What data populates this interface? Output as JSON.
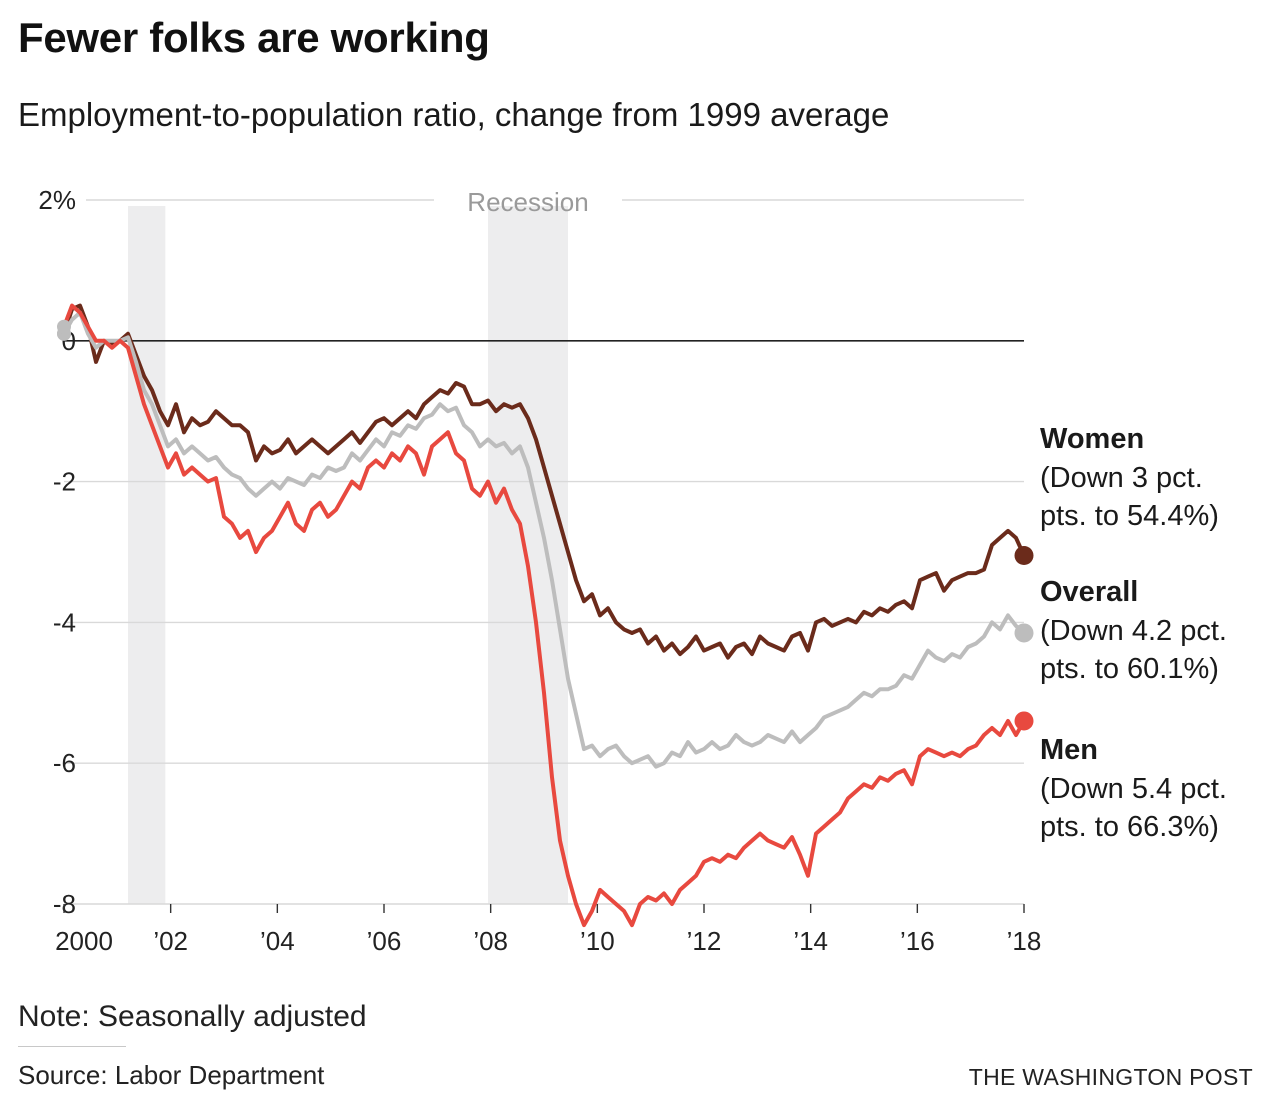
{
  "header": {
    "title": "Fewer folks are working",
    "subtitle": "Employment-to-population ratio, change from 1999 average"
  },
  "footer": {
    "note": "Note: Seasonally adjusted",
    "source": "Source: Labor Department",
    "credit": "THE WASHINGTON POST"
  },
  "labels": {
    "women": {
      "name": "Women",
      "line1": "(Down 3 pct.",
      "line2": "pts. to 54.4%)"
    },
    "overall": {
      "name": "Overall",
      "line1": "(Down 4.2 pct.",
      "line2": "pts. to 60.1%)"
    },
    "men": {
      "name": "Men",
      "line1": "(Down 5.4 pct.",
      "line2": "pts. to 66.3%)"
    }
  },
  "chart_data": {
    "type": "line",
    "title": "Fewer folks are working",
    "subtitle": "Employment-to-population ratio, change from 1999 average",
    "xlim": [
      2000,
      2018
    ],
    "ylim": [
      -8,
      2
    ],
    "grid": true,
    "y_ticks": [
      {
        "value": 2,
        "label": "2%"
      },
      {
        "value": 0,
        "label": "0"
      },
      {
        "value": -2,
        "label": "-2"
      },
      {
        "value": -4,
        "label": "-4"
      },
      {
        "value": -6,
        "label": "-6"
      },
      {
        "value": -8,
        "label": "-8"
      }
    ],
    "x_ticks": [
      {
        "value": 2000,
        "label": "2000"
      },
      {
        "value": 2002,
        "label": "’02"
      },
      {
        "value": 2004,
        "label": "’04"
      },
      {
        "value": 2006,
        "label": "’06"
      },
      {
        "value": 2008,
        "label": "’08"
      },
      {
        "value": 2010,
        "label": "’10"
      },
      {
        "value": 2012,
        "label": "’12"
      },
      {
        "value": 2014,
        "label": "’14"
      },
      {
        "value": 2016,
        "label": "’16"
      },
      {
        "value": 2018,
        "label": "’18"
      }
    ],
    "recessions": [
      {
        "start": 2001.2,
        "end": 2001.9,
        "label": ""
      },
      {
        "start": 2007.95,
        "end": 2009.45,
        "label": "Recession"
      }
    ],
    "series": [
      {
        "name": "Women",
        "color": "#6b2b1b",
        "x": [
          2000.0,
          2000.15,
          2000.3,
          2000.45,
          2000.6,
          2000.75,
          2000.9,
          2001.05,
          2001.2,
          2001.35,
          2001.5,
          2001.65,
          2001.8,
          2001.95,
          2002.1,
          2002.25,
          2002.4,
          2002.55,
          2002.7,
          2002.85,
          2003.0,
          2003.15,
          2003.3,
          2003.45,
          2003.6,
          2003.75,
          2003.9,
          2004.05,
          2004.2,
          2004.35,
          2004.5,
          2004.65,
          2004.8,
          2004.95,
          2005.1,
          2005.25,
          2005.4,
          2005.55,
          2005.7,
          2005.85,
          2006.0,
          2006.15,
          2006.3,
          2006.45,
          2006.6,
          2006.75,
          2006.9,
          2007.05,
          2007.2,
          2007.35,
          2007.5,
          2007.65,
          2007.8,
          2007.95,
          2008.1,
          2008.25,
          2008.4,
          2008.55,
          2008.7,
          2008.85,
          2009.0,
          2009.15,
          2009.3,
          2009.45,
          2009.6,
          2009.75,
          2009.9,
          2010.05,
          2010.2,
          2010.35,
          2010.5,
          2010.65,
          2010.8,
          2010.95,
          2011.1,
          2011.25,
          2011.4,
          2011.55,
          2011.7,
          2011.85,
          2012.0,
          2012.15,
          2012.3,
          2012.45,
          2012.6,
          2012.75,
          2012.9,
          2013.05,
          2013.2,
          2013.35,
          2013.5,
          2013.65,
          2013.8,
          2013.95,
          2014.1,
          2014.25,
          2014.4,
          2014.55,
          2014.7,
          2014.85,
          2015.0,
          2015.15,
          2015.3,
          2015.45,
          2015.6,
          2015.75,
          2015.9,
          2016.05,
          2016.2,
          2016.35,
          2016.5,
          2016.65,
          2016.8,
          2016.95,
          2017.1,
          2017.25,
          2017.4,
          2017.55,
          2017.7,
          2017.85,
          2018.0
        ],
        "values": [
          0.1,
          0.45,
          0.5,
          0.2,
          -0.3,
          0.0,
          -0.05,
          0.0,
          0.1,
          -0.2,
          -0.5,
          -0.7,
          -1.0,
          -1.2,
          -0.9,
          -1.3,
          -1.1,
          -1.2,
          -1.15,
          -1.0,
          -1.1,
          -1.2,
          -1.2,
          -1.3,
          -1.7,
          -1.5,
          -1.6,
          -1.55,
          -1.4,
          -1.6,
          -1.5,
          -1.4,
          -1.5,
          -1.6,
          -1.5,
          -1.4,
          -1.3,
          -1.45,
          -1.3,
          -1.15,
          -1.1,
          -1.2,
          -1.1,
          -1.0,
          -1.1,
          -0.9,
          -0.8,
          -0.7,
          -0.75,
          -0.6,
          -0.65,
          -0.9,
          -0.9,
          -0.85,
          -1.0,
          -0.9,
          -0.95,
          -0.9,
          -1.1,
          -1.4,
          -1.8,
          -2.2,
          -2.6,
          -3.0,
          -3.4,
          -3.7,
          -3.6,
          -3.9,
          -3.8,
          -4.0,
          -4.1,
          -4.15,
          -4.1,
          -4.3,
          -4.2,
          -4.4,
          -4.3,
          -4.45,
          -4.35,
          -4.2,
          -4.4,
          -4.35,
          -4.3,
          -4.5,
          -4.35,
          -4.3,
          -4.45,
          -4.2,
          -4.3,
          -4.35,
          -4.4,
          -4.2,
          -4.15,
          -4.4,
          -4.0,
          -3.95,
          -4.05,
          -4.0,
          -3.95,
          -4.0,
          -3.85,
          -3.9,
          -3.8,
          -3.85,
          -3.75,
          -3.7,
          -3.8,
          -3.4,
          -3.35,
          -3.3,
          -3.55,
          -3.4,
          -3.35,
          -3.3,
          -3.3,
          -3.25,
          -2.9,
          -2.8,
          -2.7,
          -2.8,
          -3.05
        ]
      },
      {
        "name": "Overall",
        "color": "#bdbdbd",
        "x": [
          2000.0,
          2000.15,
          2000.3,
          2000.45,
          2000.6,
          2000.75,
          2000.9,
          2001.05,
          2001.2,
          2001.35,
          2001.5,
          2001.65,
          2001.8,
          2001.95,
          2002.1,
          2002.25,
          2002.4,
          2002.55,
          2002.7,
          2002.85,
          2003.0,
          2003.15,
          2003.3,
          2003.45,
          2003.6,
          2003.75,
          2003.9,
          2004.05,
          2004.2,
          2004.35,
          2004.5,
          2004.65,
          2004.8,
          2004.95,
          2005.1,
          2005.25,
          2005.4,
          2005.55,
          2005.7,
          2005.85,
          2006.0,
          2006.15,
          2006.3,
          2006.45,
          2006.6,
          2006.75,
          2006.9,
          2007.05,
          2007.2,
          2007.35,
          2007.5,
          2007.65,
          2007.8,
          2007.95,
          2008.1,
          2008.25,
          2008.4,
          2008.55,
          2008.7,
          2008.85,
          2009.0,
          2009.15,
          2009.3,
          2009.45,
          2009.6,
          2009.75,
          2009.9,
          2010.05,
          2010.2,
          2010.35,
          2010.5,
          2010.65,
          2010.8,
          2010.95,
          2011.1,
          2011.25,
          2011.4,
          2011.55,
          2011.7,
          2011.85,
          2012.0,
          2012.15,
          2012.3,
          2012.45,
          2012.6,
          2012.75,
          2012.9,
          2013.05,
          2013.2,
          2013.35,
          2013.5,
          2013.65,
          2013.8,
          2013.95,
          2014.1,
          2014.25,
          2014.4,
          2014.55,
          2014.7,
          2014.85,
          2015.0,
          2015.15,
          2015.3,
          2015.45,
          2015.6,
          2015.75,
          2015.9,
          2016.05,
          2016.2,
          2016.35,
          2016.5,
          2016.65,
          2016.8,
          2016.95,
          2017.1,
          2017.25,
          2017.4,
          2017.55,
          2017.7,
          2017.85,
          2018.0
        ],
        "values": [
          0.1,
          0.3,
          0.4,
          0.1,
          -0.1,
          0.0,
          0.0,
          0.0,
          0.05,
          -0.3,
          -0.7,
          -0.9,
          -1.2,
          -1.5,
          -1.4,
          -1.6,
          -1.5,
          -1.6,
          -1.7,
          -1.65,
          -1.8,
          -1.9,
          -1.95,
          -2.1,
          -2.2,
          -2.1,
          -2.0,
          -2.1,
          -1.95,
          -2.0,
          -2.05,
          -1.9,
          -1.95,
          -1.8,
          -1.85,
          -1.8,
          -1.6,
          -1.7,
          -1.55,
          -1.4,
          -1.5,
          -1.3,
          -1.35,
          -1.2,
          -1.25,
          -1.1,
          -1.05,
          -0.9,
          -1.0,
          -0.95,
          -1.2,
          -1.3,
          -1.5,
          -1.4,
          -1.5,
          -1.45,
          -1.6,
          -1.5,
          -1.8,
          -2.3,
          -2.8,
          -3.4,
          -4.1,
          -4.8,
          -5.3,
          -5.8,
          -5.75,
          -5.9,
          -5.8,
          -5.75,
          -5.9,
          -6.0,
          -5.95,
          -5.9,
          -6.05,
          -6.0,
          -5.85,
          -5.9,
          -5.7,
          -5.85,
          -5.8,
          -5.7,
          -5.8,
          -5.75,
          -5.6,
          -5.7,
          -5.75,
          -5.7,
          -5.6,
          -5.65,
          -5.7,
          -5.55,
          -5.7,
          -5.6,
          -5.5,
          -5.35,
          -5.3,
          -5.25,
          -5.2,
          -5.1,
          -5.0,
          -5.05,
          -4.95,
          -4.95,
          -4.9,
          -4.75,
          -4.8,
          -4.6,
          -4.4,
          -4.5,
          -4.55,
          -4.45,
          -4.5,
          -4.35,
          -4.3,
          -4.2,
          -4.0,
          -4.1,
          -3.9,
          -4.05,
          -4.15
        ]
      },
      {
        "name": "Men",
        "color": "#e8493f",
        "x": [
          2000.0,
          2000.15,
          2000.3,
          2000.45,
          2000.6,
          2000.75,
          2000.9,
          2001.05,
          2001.2,
          2001.35,
          2001.5,
          2001.65,
          2001.8,
          2001.95,
          2002.1,
          2002.25,
          2002.4,
          2002.55,
          2002.7,
          2002.85,
          2003.0,
          2003.15,
          2003.3,
          2003.45,
          2003.6,
          2003.75,
          2003.9,
          2004.05,
          2004.2,
          2004.35,
          2004.5,
          2004.65,
          2004.8,
          2004.95,
          2005.1,
          2005.25,
          2005.4,
          2005.55,
          2005.7,
          2005.85,
          2006.0,
          2006.15,
          2006.3,
          2006.45,
          2006.6,
          2006.75,
          2006.9,
          2007.05,
          2007.2,
          2007.35,
          2007.5,
          2007.65,
          2007.8,
          2007.95,
          2008.1,
          2008.25,
          2008.4,
          2008.55,
          2008.7,
          2008.85,
          2009.0,
          2009.15,
          2009.3,
          2009.45,
          2009.6,
          2009.75,
          2009.9,
          2010.05,
          2010.2,
          2010.35,
          2010.5,
          2010.65,
          2010.8,
          2010.95,
          2011.1,
          2011.25,
          2011.4,
          2011.55,
          2011.7,
          2011.85,
          2012.0,
          2012.15,
          2012.3,
          2012.45,
          2012.6,
          2012.75,
          2012.9,
          2013.05,
          2013.2,
          2013.35,
          2013.5,
          2013.65,
          2013.8,
          2013.95,
          2014.1,
          2014.25,
          2014.4,
          2014.55,
          2014.7,
          2014.85,
          2015.0,
          2015.15,
          2015.3,
          2015.45,
          2015.6,
          2015.75,
          2015.9,
          2016.05,
          2016.2,
          2016.35,
          2016.5,
          2016.65,
          2016.8,
          2016.95,
          2017.1,
          2017.25,
          2017.4,
          2017.55,
          2017.7,
          2017.85,
          2018.0
        ],
        "values": [
          0.2,
          0.5,
          0.4,
          0.2,
          0.0,
          0.0,
          -0.1,
          0.0,
          -0.1,
          -0.5,
          -0.9,
          -1.2,
          -1.5,
          -1.8,
          -1.6,
          -1.9,
          -1.8,
          -1.9,
          -2.0,
          -1.95,
          -2.5,
          -2.6,
          -2.8,
          -2.7,
          -3.0,
          -2.8,
          -2.7,
          -2.5,
          -2.3,
          -2.6,
          -2.7,
          -2.4,
          -2.3,
          -2.5,
          -2.4,
          -2.2,
          -2.0,
          -2.1,
          -1.8,
          -1.7,
          -1.8,
          -1.6,
          -1.7,
          -1.5,
          -1.6,
          -1.9,
          -1.5,
          -1.4,
          -1.3,
          -1.6,
          -1.7,
          -2.1,
          -2.2,
          -2.0,
          -2.3,
          -2.1,
          -2.4,
          -2.6,
          -3.2,
          -4.0,
          -5.0,
          -6.2,
          -7.1,
          -7.6,
          -8.0,
          -8.3,
          -8.1,
          -7.8,
          -7.9,
          -8.0,
          -8.1,
          -8.3,
          -8.0,
          -7.9,
          -7.95,
          -7.85,
          -8.0,
          -7.8,
          -7.7,
          -7.6,
          -7.4,
          -7.35,
          -7.4,
          -7.3,
          -7.35,
          -7.2,
          -7.1,
          -7.0,
          -7.1,
          -7.15,
          -7.2,
          -7.05,
          -7.3,
          -7.6,
          -7.0,
          -6.9,
          -6.8,
          -6.7,
          -6.5,
          -6.4,
          -6.3,
          -6.35,
          -6.2,
          -6.25,
          -6.15,
          -6.1,
          -6.3,
          -5.9,
          -5.8,
          -5.85,
          -5.9,
          -5.85,
          -5.9,
          -5.8,
          -5.75,
          -5.6,
          -5.5,
          -5.6,
          -5.4,
          -5.6,
          -5.4
        ]
      }
    ]
  }
}
